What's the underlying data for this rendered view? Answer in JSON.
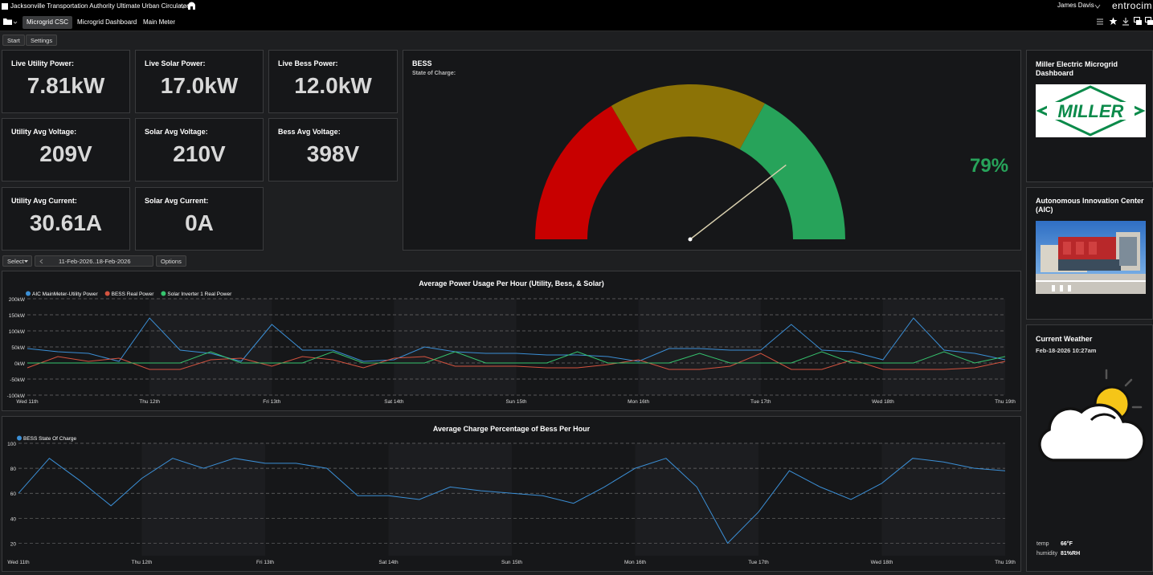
{
  "app": {
    "title": "Jacksonville Transportation Authority Ultimate Urban Circulator",
    "user": "James Davis",
    "brand": "entrocim"
  },
  "tabs": [
    {
      "label": "Microgrid CSC",
      "active": true
    },
    {
      "label": "Microgrid Dashboard",
      "active": false
    },
    {
      "label": "Main Meter",
      "active": false
    }
  ],
  "toolbar": {
    "start": "Start",
    "settings": "Settings"
  },
  "tiles": [
    {
      "label": "Live Utility Power:",
      "value": "7.81kW"
    },
    {
      "label": "Live Solar Power:",
      "value": "17.0kW"
    },
    {
      "label": "Live Bess Power:",
      "value": "12.0kW"
    },
    {
      "label": "Utility Avg Voltage:",
      "value": "209V"
    },
    {
      "label": "Solar Avg Voltage:",
      "value": "210V"
    },
    {
      "label": "Bess Avg Voltage:",
      "value": "398V"
    },
    {
      "label": "Utility Avg Current:",
      "value": "30.61A"
    },
    {
      "label": "Solar Avg Current:",
      "value": "0A"
    }
  ],
  "bess": {
    "title": "BESS",
    "subtitle": "State of Charge:",
    "value_text": "79%",
    "value": 79,
    "min": 0,
    "max": 100,
    "bands": [
      {
        "from": 0,
        "to": 33,
        "color": "#c80000"
      },
      {
        "from": 33,
        "to": 66,
        "color": "#8c7306"
      },
      {
        "from": 66,
        "to": 100,
        "color": "#27a35a"
      }
    ],
    "value_color": "#27a35a"
  },
  "filters": {
    "select_label": "Select",
    "date_range": "11-Feb-2026..18-Feb-2026",
    "options_label": "Options"
  },
  "x_day_labels": [
    "Wed 11th",
    "Thu 12th",
    "Fri 13th",
    "Sat 14th",
    "Sun 15th",
    "Mon 16th",
    "Tue 17th",
    "Wed 18th",
    "Thu 19th"
  ],
  "chart_data": [
    {
      "type": "line",
      "title": "Average Power Usage Per Hour (Utility, Bess, & Solar)",
      "y_unit": "kW",
      "y_ticks": [
        "200kW",
        "150kW",
        "100kW",
        "50kW",
        "0kW",
        "-50kW",
        "-100kW"
      ],
      "ylim": [
        -100,
        200
      ],
      "x": [
        0,
        0.25,
        0.5,
        0.75,
        1,
        1.25,
        1.5,
        1.75,
        2,
        2.25,
        2.5,
        2.75,
        3,
        3.25,
        3.5,
        3.75,
        4,
        4.25,
        4.5,
        4.75,
        5,
        5.25,
        5.5,
        5.75,
        6,
        6.25,
        6.5,
        6.75,
        7,
        7.25,
        7.5,
        7.75,
        8
      ],
      "legend": "top-left",
      "series": [
        {
          "name": "AIC MainMeter-Utility Power",
          "color": "#3b8fd6",
          "values": [
            45,
            35,
            30,
            5,
            140,
            40,
            30,
            5,
            120,
            40,
            40,
            5,
            10,
            50,
            35,
            30,
            30,
            25,
            25,
            20,
            5,
            45,
            45,
            40,
            40,
            120,
            40,
            35,
            10,
            140,
            40,
            30,
            10
          ]
        },
        {
          "name": "BESS Real Power",
          "color": "#d4533f",
          "values": [
            -15,
            20,
            5,
            15,
            -20,
            -20,
            10,
            15,
            -10,
            20,
            10,
            -15,
            15,
            20,
            -10,
            -10,
            -10,
            -15,
            -15,
            -5,
            10,
            -20,
            -20,
            -10,
            30,
            -20,
            -20,
            10,
            -20,
            -20,
            -20,
            -15,
            5
          ]
        },
        {
          "name": "Solar Inverter 1 Real Power",
          "color": "#36c46e",
          "values": [
            0,
            0,
            0,
            0,
            0,
            0,
            35,
            0,
            0,
            0,
            35,
            0,
            0,
            0,
            35,
            0,
            0,
            0,
            35,
            0,
            0,
            0,
            30,
            0,
            0,
            0,
            35,
            0,
            0,
            0,
            35,
            0,
            20
          ]
        }
      ]
    },
    {
      "type": "line",
      "title": "Average Charge Percentage of Bess Per Hour",
      "y_ticks": [
        "100",
        "80",
        "60",
        "40",
        "20"
      ],
      "ylim": [
        10,
        100
      ],
      "x": [
        0,
        0.25,
        0.5,
        0.75,
        1,
        1.25,
        1.5,
        1.75,
        2,
        2.25,
        2.5,
        2.75,
        3,
        3.25,
        3.5,
        3.75,
        4,
        4.25,
        4.5,
        4.75,
        5,
        5.25,
        5.5,
        5.75,
        6,
        6.25,
        6.5,
        6.75,
        7,
        7.25,
        7.5,
        7.75,
        8
      ],
      "legend": "top-left",
      "series": [
        {
          "name": "BESS State Of Charge",
          "color": "#3b8fd6",
          "values": [
            60,
            88,
            70,
            50,
            72,
            88,
            80,
            88,
            84,
            84,
            80,
            58,
            58,
            55,
            65,
            62,
            60,
            58,
            52,
            65,
            80,
            88,
            65,
            20,
            45,
            78,
            65,
            55,
            68,
            88,
            85,
            80,
            78
          ]
        }
      ]
    }
  ],
  "miller": {
    "title": "Miller Electric Microgrid Dashboard",
    "logo_text": "MILLER"
  },
  "aic": {
    "title": "Autonomous Innovation Center (AIC)"
  },
  "weather": {
    "title": "Current Weather",
    "timestamp": "Feb-18-2026 10:27am",
    "temp_label": "temp",
    "temp": "66°F",
    "humidity_label": "humidity",
    "humidity": "81%RH",
    "icon": "partly-cloudy-icon"
  }
}
